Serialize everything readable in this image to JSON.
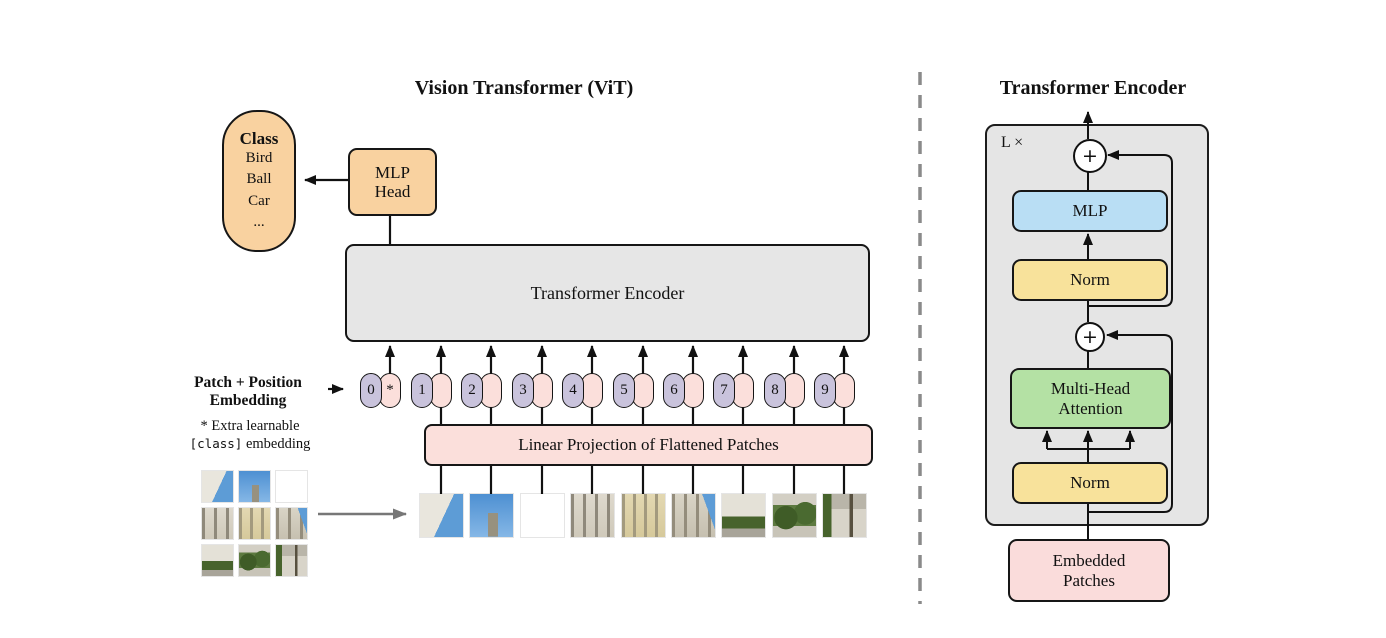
{
  "left": {
    "title": "Vision Transformer (ViT)",
    "class_pill": {
      "header": "Class",
      "items": "Bird\nBall\nCar\n..."
    },
    "mlp_head_label": "MLP\nHead",
    "encoder_label": "Transformer Encoder",
    "embedding_label": "Patch + Position\nEmbedding",
    "note": {
      "star_line": "* Extra learnable",
      "code": "[class]",
      "suffix": " embedding"
    },
    "linear_projection_label": "Linear Projection of Flattened Patches",
    "tokens": [
      {
        "label": "0",
        "slot": "*"
      },
      {
        "label": "1",
        "slot": ""
      },
      {
        "label": "2",
        "slot": ""
      },
      {
        "label": "3",
        "slot": ""
      },
      {
        "label": "4",
        "slot": ""
      },
      {
        "label": "5",
        "slot": ""
      },
      {
        "label": "6",
        "slot": ""
      },
      {
        "label": "7",
        "slot": ""
      },
      {
        "label": "8",
        "slot": ""
      },
      {
        "label": "9",
        "slot": ""
      }
    ],
    "patch_kinds": [
      "building-sky",
      "sky-tower",
      "sky",
      "facade",
      "palace-facade",
      "facade-sky",
      "building-hedge",
      "garden-hedges",
      "pavement-tree"
    ]
  },
  "right": {
    "title": "Transformer Encoder",
    "loop_label": "L ×",
    "plus_symbol": "+",
    "mlp_label": "MLP",
    "norm_top_label": "Norm",
    "mha_label": "Multi-Head\nAttention",
    "norm_bottom_label": "Norm",
    "embedded_label": "Embedded\nPatches"
  },
  "colors": {
    "orange": "#f9d2a0",
    "encoder_gray": "#e6e6e6",
    "token_purple": "#c9c3dc",
    "patch_pink": "#fbdfdb",
    "mlp_blue": "#b9def4",
    "norm_yellow": "#f8e29b",
    "attention_green": "#b4e1a4",
    "divider_gray": "#8a8a8a"
  }
}
